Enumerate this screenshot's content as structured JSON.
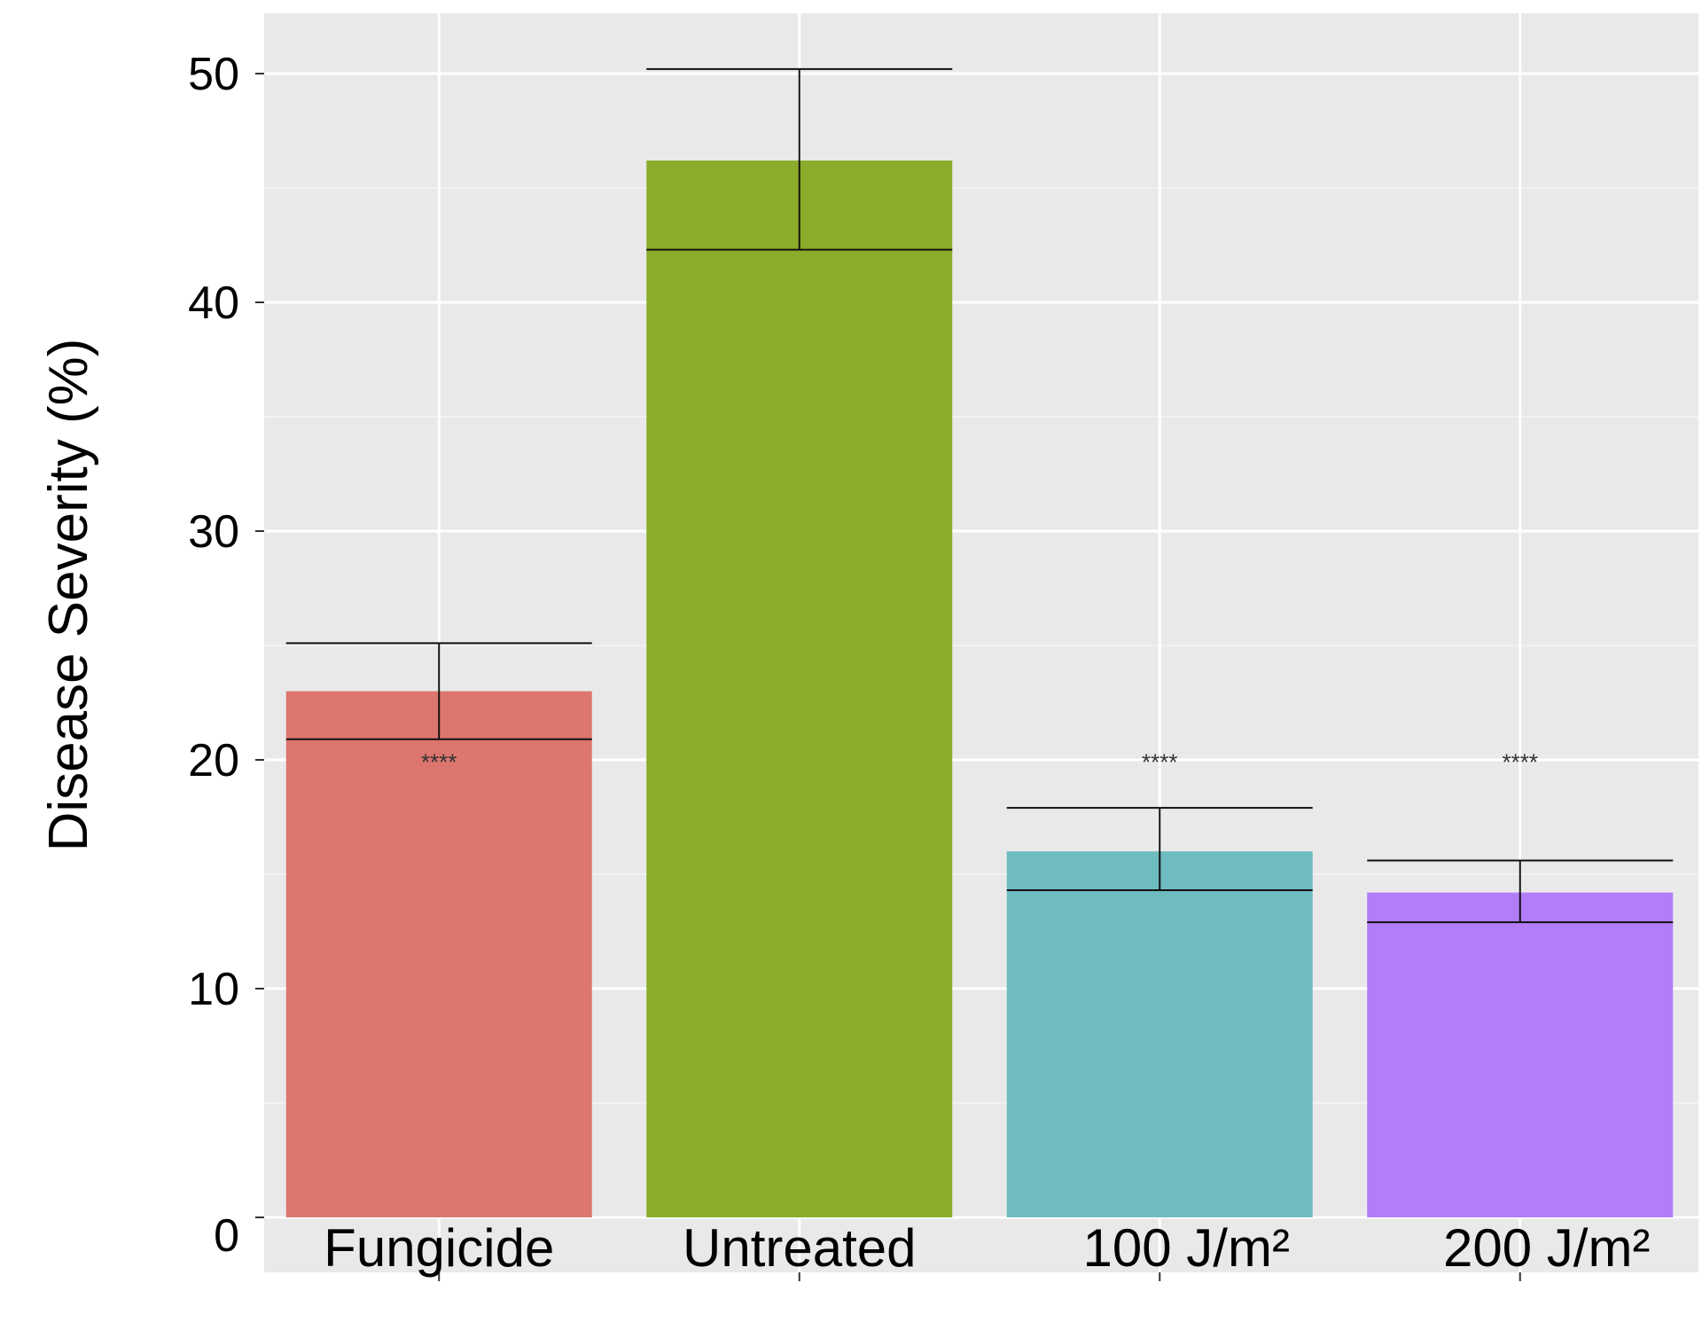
{
  "chart_data": {
    "type": "bar",
    "title": "",
    "xlabel": "",
    "ylabel": "Disease Severity (%)",
    "ylim": [
      0,
      52.5
    ],
    "yticks": [
      "0",
      "10",
      "20",
      "30",
      "40",
      "50"
    ],
    "grid": true,
    "background": "#e9e9e9",
    "categories": [
      "Fungicide",
      "Untreated",
      "100 J/m²",
      "200 J/m²"
    ],
    "values": [
      23.0,
      46.2,
      16.0,
      14.2
    ],
    "error_upper": [
      25.1,
      50.2,
      17.9,
      15.6
    ],
    "error_lower": [
      20.9,
      42.3,
      14.3,
      12.9
    ],
    "annotations": [
      "****",
      "",
      "****",
      "****"
    ],
    "annotation_y": 20.1,
    "colors": [
      "#dc766f",
      "#8bac2a",
      "#6ebbc0",
      "#b37cf9"
    ]
  }
}
